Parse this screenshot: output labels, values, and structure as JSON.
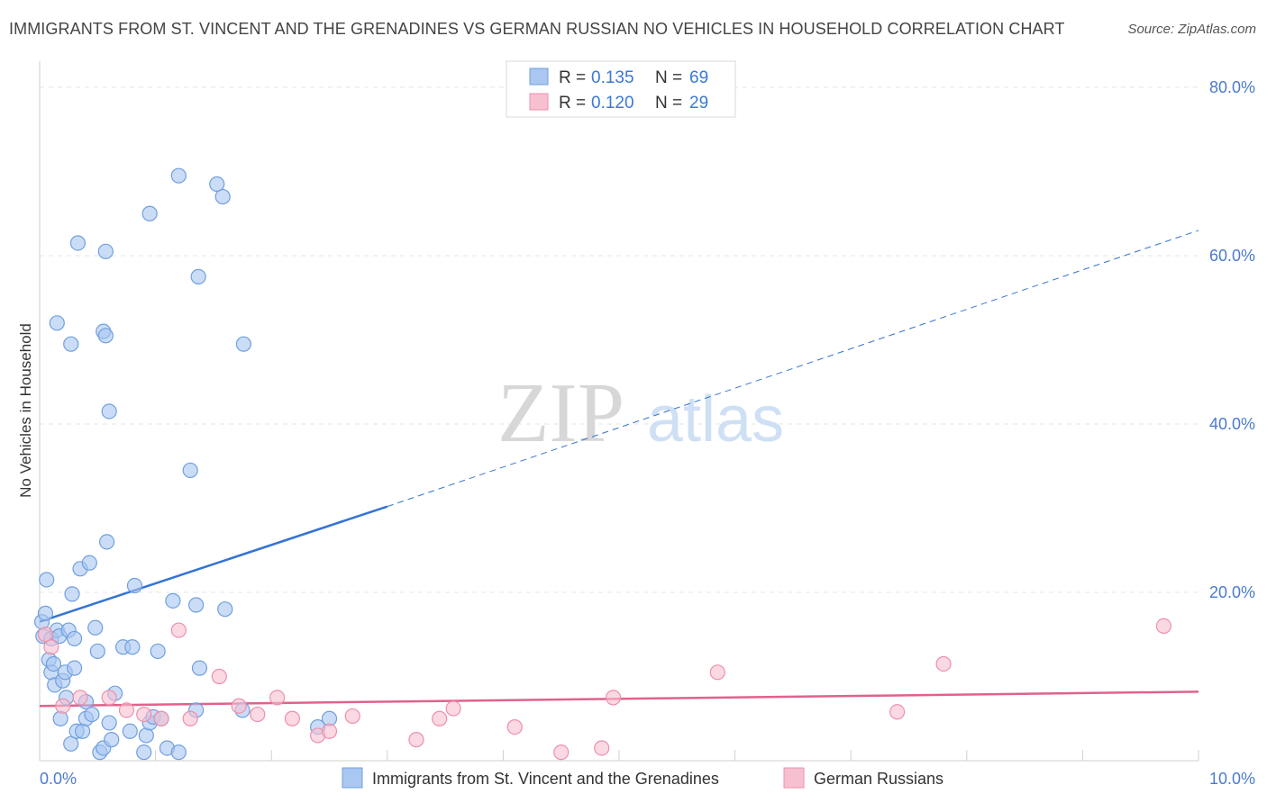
{
  "header": {
    "title": "IMMIGRANTS FROM ST. VINCENT AND THE GRENADINES VS GERMAN RUSSIAN NO VEHICLES IN HOUSEHOLD CORRELATION CHART",
    "source": "Source: ZipAtlas.com"
  },
  "watermark": {
    "zip": "ZIP",
    "atlas": "atlas"
  },
  "chart_data": {
    "type": "scatter",
    "title": "IMMIGRANTS FROM ST. VINCENT AND THE GRENADINES VS GERMAN RUSSIAN NO VEHICLES IN HOUSEHOLD CORRELATION CHART",
    "xlabel": "",
    "ylabel": "No Vehicles in Household",
    "xlim": [
      0,
      10
    ],
    "ylim": [
      0,
      80
    ],
    "x_ticks": [
      0,
      10
    ],
    "x_tick_labels": [
      "0.0%",
      "10.0%"
    ],
    "y_ticks": [
      20,
      40,
      60,
      80
    ],
    "y_tick_labels": [
      "20.0%",
      "40.0%",
      "60.0%",
      "80.0%"
    ],
    "grid": true,
    "legend_position": "top-center",
    "stats": [
      {
        "r_label": "R =",
        "r_value": "0.135",
        "n_label": "N =",
        "n_value": "69"
      },
      {
        "r_label": "R =",
        "r_value": "0.120",
        "n_label": "N =",
        "n_value": "29"
      }
    ],
    "series": [
      {
        "name": "Immigrants from St. Vincent and the Grenadines",
        "color": "#a9c7f0",
        "stroke": "#6f9fe0",
        "line_color": "#3474d4",
        "trend": {
          "x0": 0,
          "y0": 16.5,
          "x1": 3.0,
          "y1": 30.2,
          "x_dash_end": 10,
          "y_dash_end": 63.0
        },
        "points": [
          [
            0.02,
            16.5
          ],
          [
            0.03,
            14.8
          ],
          [
            0.05,
            17.5
          ],
          [
            0.06,
            21.5
          ],
          [
            0.08,
            12.0
          ],
          [
            0.1,
            14.5
          ],
          [
            0.1,
            10.5
          ],
          [
            0.12,
            11.5
          ],
          [
            0.13,
            9.0
          ],
          [
            0.15,
            15.5
          ],
          [
            0.17,
            14.8
          ],
          [
            0.18,
            5.0
          ],
          [
            0.2,
            9.5
          ],
          [
            0.22,
            10.5
          ],
          [
            0.23,
            7.5
          ],
          [
            0.25,
            15.5
          ],
          [
            0.27,
            2.0
          ],
          [
            0.28,
            19.8
          ],
          [
            0.3,
            14.5
          ],
          [
            0.3,
            11.0
          ],
          [
            0.32,
            3.5
          ],
          [
            0.35,
            22.8
          ],
          [
            0.37,
            3.5
          ],
          [
            0.4,
            7.0
          ],
          [
            0.4,
            5.0
          ],
          [
            0.43,
            23.5
          ],
          [
            0.45,
            5.5
          ],
          [
            0.48,
            15.8
          ],
          [
            0.5,
            13.0
          ],
          [
            0.52,
            1.0
          ],
          [
            0.55,
            1.5
          ],
          [
            0.58,
            26.0
          ],
          [
            0.6,
            4.5
          ],
          [
            0.62,
            2.5
          ],
          [
            0.65,
            8.0
          ],
          [
            0.72,
            13.5
          ],
          [
            0.78,
            3.5
          ],
          [
            0.8,
            13.5
          ],
          [
            0.82,
            20.8
          ],
          [
            0.9,
            1.0
          ],
          [
            0.92,
            3.0
          ],
          [
            0.95,
            4.5
          ],
          [
            0.98,
            5.2
          ],
          [
            1.02,
            13.0
          ],
          [
            1.05,
            5.0
          ],
          [
            1.1,
            1.5
          ],
          [
            1.15,
            19.0
          ],
          [
            1.2,
            1.0
          ],
          [
            1.3,
            34.5
          ],
          [
            1.35,
            18.5
          ],
          [
            1.38,
            11.0
          ],
          [
            1.35,
            6.0
          ],
          [
            1.6,
            18.0
          ],
          [
            1.75,
            6.0
          ],
          [
            2.4,
            4.0
          ],
          [
            2.5,
            5.0
          ],
          [
            0.15,
            52.0
          ],
          [
            0.27,
            49.5
          ],
          [
            0.33,
            61.5
          ],
          [
            0.55,
            51.0
          ],
          [
            0.57,
            50.5
          ],
          [
            0.57,
            60.5
          ],
          [
            0.6,
            41.5
          ],
          [
            0.95,
            65.0
          ],
          [
            1.2,
            69.5
          ],
          [
            1.37,
            57.5
          ],
          [
            1.53,
            68.5
          ],
          [
            1.58,
            67.0
          ],
          [
            1.76,
            49.5
          ]
        ]
      },
      {
        "name": "German Russians",
        "color": "#f7c0d0",
        "stroke": "#ee8fab",
        "line_color": "#e0628c",
        "trend": {
          "x0": 0,
          "y0": 6.5,
          "x1": 10,
          "y1": 8.2
        },
        "points": [
          [
            0.05,
            15.0
          ],
          [
            0.1,
            13.5
          ],
          [
            0.2,
            6.5
          ],
          [
            0.35,
            7.5
          ],
          [
            0.6,
            7.5
          ],
          [
            0.75,
            6.0
          ],
          [
            0.9,
            5.5
          ],
          [
            1.05,
            5.0
          ],
          [
            1.2,
            15.5
          ],
          [
            1.3,
            5.0
          ],
          [
            1.55,
            10.0
          ],
          [
            1.72,
            6.5
          ],
          [
            1.88,
            5.5
          ],
          [
            2.05,
            7.5
          ],
          [
            2.18,
            5.0
          ],
          [
            2.4,
            3.0
          ],
          [
            2.5,
            3.5
          ],
          [
            2.7,
            5.3
          ],
          [
            3.25,
            2.5
          ],
          [
            3.45,
            5.0
          ],
          [
            3.57,
            6.2
          ],
          [
            4.1,
            4.0
          ],
          [
            4.5,
            1.0
          ],
          [
            4.85,
            1.5
          ],
          [
            4.95,
            7.5
          ],
          [
            5.85,
            10.5
          ],
          [
            7.4,
            5.8
          ],
          [
            7.8,
            11.5
          ],
          [
            9.7,
            16.0
          ]
        ]
      }
    ]
  }
}
